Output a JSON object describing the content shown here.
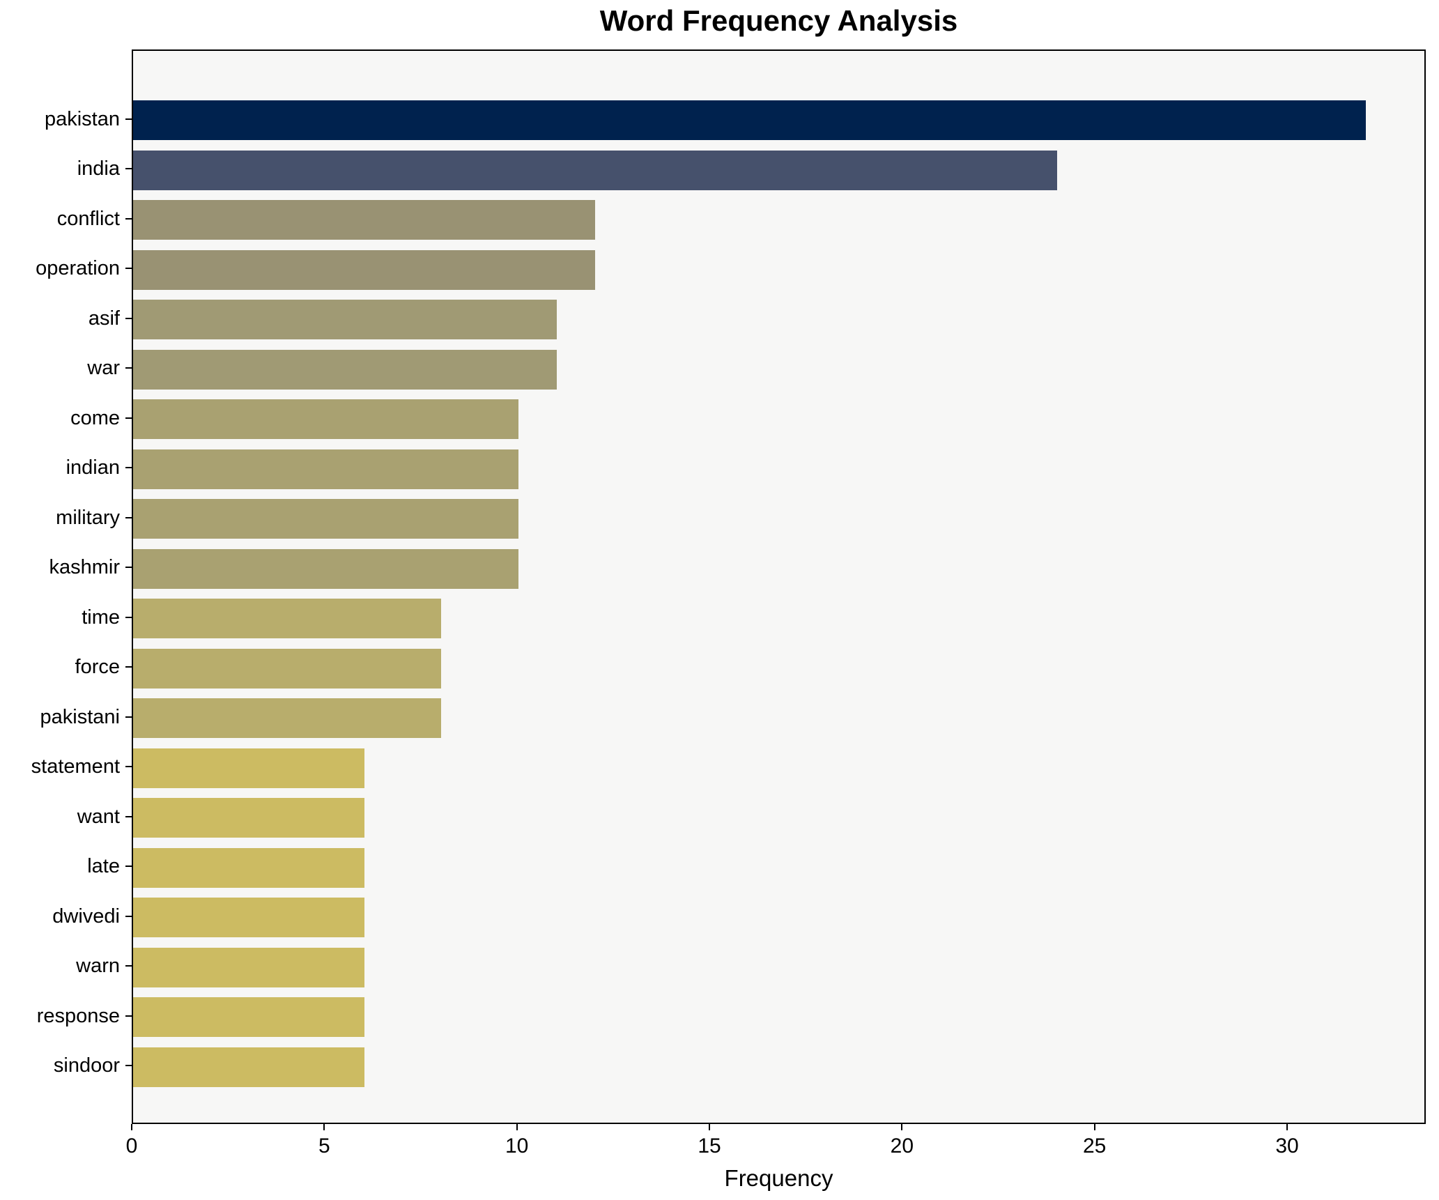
{
  "chart_data": {
    "type": "bar",
    "orientation": "horizontal",
    "title": "Word Frequency Analysis",
    "xlabel": "Frequency",
    "ylabel": "",
    "xlim": [
      0,
      33.6
    ],
    "x_ticks": [
      0,
      5,
      10,
      15,
      20,
      25,
      30
    ],
    "grid": false,
    "legend": "none",
    "plot_background": "#f7f7f6",
    "page_background": "#ffffff",
    "spine_color": "#000000",
    "categories": [
      "pakistan",
      "india",
      "conflict",
      "operation",
      "asif",
      "war",
      "come",
      "indian",
      "military",
      "kashmir",
      "time",
      "force",
      "pakistani",
      "statement",
      "want",
      "late",
      "dwivedi",
      "warn",
      "response",
      "sindoor"
    ],
    "values": [
      32,
      24,
      12,
      12,
      11,
      11,
      10,
      10,
      10,
      10,
      8,
      8,
      8,
      6,
      6,
      6,
      6,
      6,
      6,
      6
    ],
    "bar_colors": [
      "#00224e",
      "#46516c",
      "#999273",
      "#999273",
      "#a09a74",
      "#a09a74",
      "#a9a171",
      "#a9a171",
      "#a9a171",
      "#a9a171",
      "#b8ad6c",
      "#b8ad6c",
      "#b8ad6c",
      "#ccbb62",
      "#ccbb62",
      "#ccbb62",
      "#ccbb62",
      "#ccbb62",
      "#ccbb62",
      "#ccbb62"
    ]
  }
}
